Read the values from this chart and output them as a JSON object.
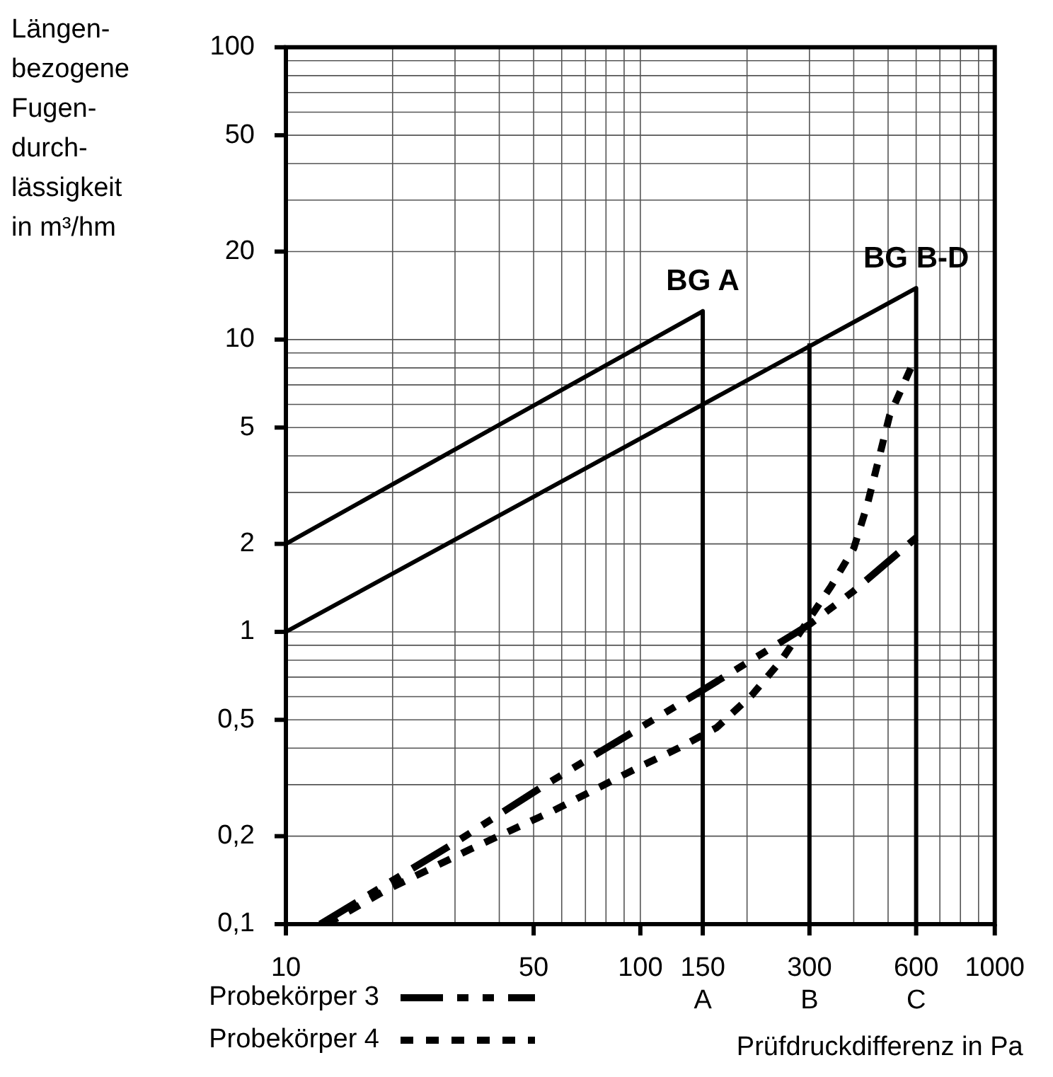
{
  "chart_data": {
    "type": "line",
    "xlabel": "Prüfdruckdifferenz in Pa",
    "ylabel": "Längen-\nbezogene\nFugen-\ndurch-\nlässigkeit\nin m³/hm",
    "log": "xy",
    "xlim": [
      10,
      1000
    ],
    "ylim": [
      0.1,
      100
    ],
    "xticks": [
      10,
      50,
      100,
      {
        "value": 150,
        "label": "150\nA"
      },
      {
        "value": 300,
        "label": "300\nB"
      },
      {
        "value": 600,
        "label": "600\nC"
      },
      1000
    ],
    "yticks": [
      {
        "value": 0.1,
        "label": "0,1"
      },
      {
        "value": 0.2,
        "label": "0,2"
      },
      {
        "value": 0.5,
        "label": "0,5"
      },
      1,
      2,
      5,
      10,
      20,
      50,
      100
    ],
    "grid": true,
    "legend": "bottom left",
    "marker": "none",
    "series": [
      {
        "color": "#000000",
        "line_style": "solid",
        "x": [
          10,
          150,
          150
        ],
        "values": [
          2,
          12.5,
          0.1
        ]
      },
      {
        "color": "#000000",
        "line_style": "solid",
        "x": [
          10,
          600,
          600
        ],
        "values": [
          1,
          15,
          0.1
        ]
      },
      {
        "color": "#000000",
        "line_style": "solid",
        "x": [
          300,
          300
        ],
        "values": [
          0.1,
          9.7
        ]
      },
      {
        "name": "Probekörper 3",
        "color": "#000000",
        "line_style": "dashed",
        "x": [
          12.5,
          30,
          54,
          146,
          300,
          400,
          600
        ],
        "values": [
          0.1,
          0.19,
          0.3,
          0.62,
          1.06,
          1.38,
          2.1
        ]
      },
      {
        "name": "Probekörper 4",
        "color": "#000000",
        "line_style": "dotted",
        "x": [
          13,
          19,
          33,
          57,
          97,
          128,
          164,
          207,
          250,
          345,
          400,
          436,
          468,
          505,
          580
        ],
        "values": [
          0.1,
          0.13,
          0.18,
          0.245,
          0.34,
          0.4,
          0.47,
          0.61,
          0.8,
          1.43,
          1.93,
          2.7,
          3.8,
          5.5,
          8
        ]
      }
    ],
    "annotations": [
      {
        "text": "BG A",
        "x": 150,
        "y": 12.5
      },
      {
        "text": "BG B-D",
        "x": 600,
        "y": 15
      }
    ]
  }
}
